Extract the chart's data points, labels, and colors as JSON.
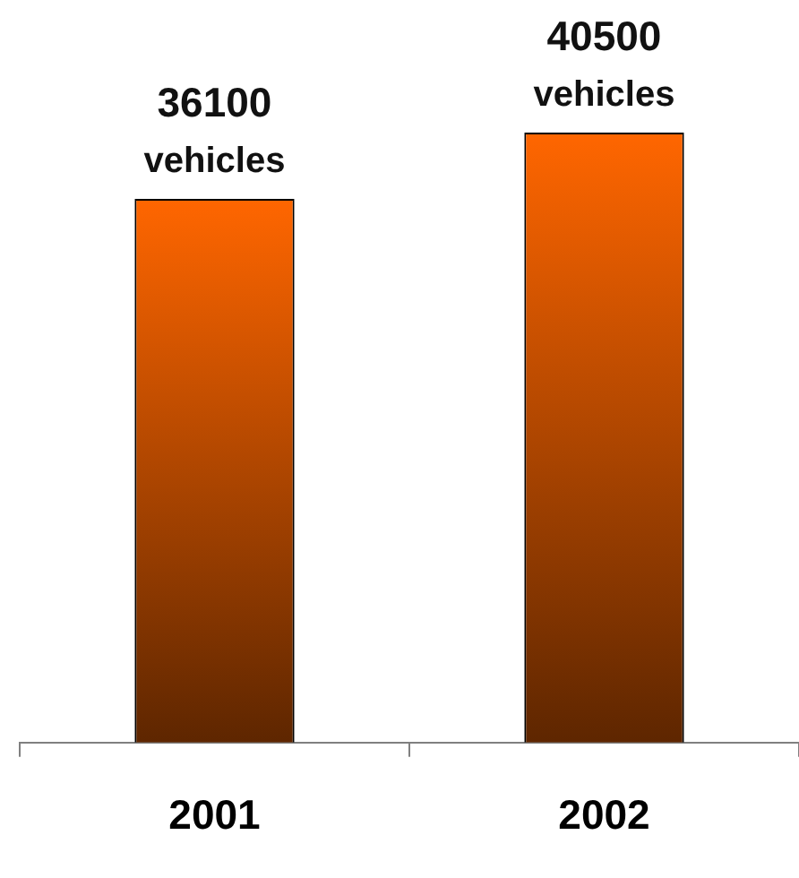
{
  "chart_data": {
    "type": "bar",
    "categories": [
      "2001",
      "2002"
    ],
    "values": [
      36100,
      40500
    ],
    "value_labels": [
      "36100 vehicles",
      "40500 vehicles"
    ],
    "color": "#ff6600",
    "tick_labels": "x"
  }
}
